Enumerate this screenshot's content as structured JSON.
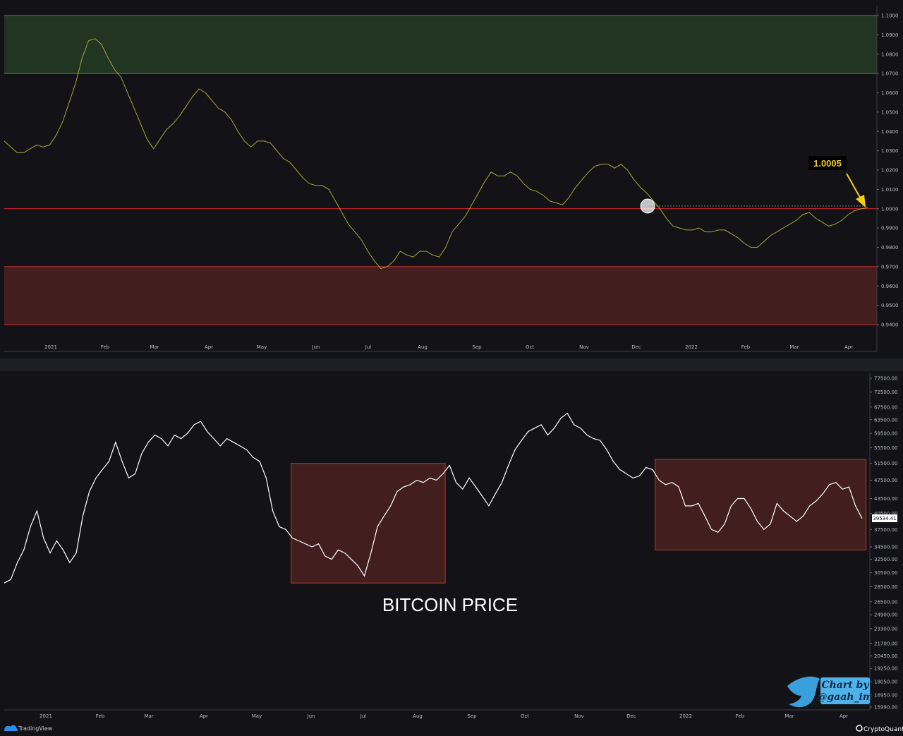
{
  "chart_data": [
    {
      "type": "line",
      "ylim": [
        0.94,
        1.1
      ],
      "yticks": [
        "1.1000",
        "1.0900",
        "1.0800",
        "1.0700",
        "1.0600",
        "1.0500",
        "1.0400",
        "1.0300",
        "1.0200",
        "1.0100",
        "1.0000",
        "0.9900",
        "0.9800",
        "0.9700",
        "0.9600",
        "0.9500",
        "0.9400"
      ],
      "xticks": [
        "2021",
        "Feb",
        "Mar",
        "Apr",
        "May",
        "Jun",
        "Jul",
        "Aug",
        "Sep",
        "Oct",
        "Nov",
        "Dec",
        "2022",
        "Feb",
        "Mar",
        "Apr"
      ],
      "bands": [
        {
          "from": 1.07,
          "to": 1.1,
          "color": "#213521"
        },
        {
          "from": 0.94,
          "to": 0.97,
          "color": "#421e1f"
        }
      ],
      "hlines": [
        {
          "y": 1.0,
          "color": "#e02a2a"
        }
      ],
      "line_color": "#a5a633",
      "callout": {
        "text": "1.0005",
        "y": 1.0005
      },
      "series": [
        {
          "values": [
            1.035,
            1.032,
            1.029,
            1.029,
            1.031,
            1.033,
            1.032,
            1.033,
            1.038,
            1.045,
            1.055,
            1.065,
            1.078,
            1.087,
            1.088,
            1.085,
            1.078,
            1.072,
            1.068,
            1.06,
            1.052,
            1.044,
            1.036,
            1.031,
            1.036,
            1.041,
            1.044,
            1.048,
            1.053,
            1.058,
            1.062,
            1.06,
            1.056,
            1.052,
            1.05,
            1.046,
            1.04,
            1.035,
            1.032,
            1.035,
            1.035,
            1.034,
            1.03,
            1.026,
            1.024,
            1.02,
            1.016,
            1.013,
            1.012,
            1.012,
            1.01,
            1.004,
            0.998,
            0.992,
            0.988,
            0.984,
            0.978,
            0.973,
            0.969,
            0.97,
            0.973,
            0.978,
            0.976,
            0.975,
            0.978,
            0.978,
            0.976,
            0.975,
            0.98,
            0.988,
            0.992,
            0.996,
            1.002,
            1.008,
            1.014,
            1.019,
            1.017,
            1.017,
            1.019,
            1.017,
            1.013,
            1.01,
            1.009,
            1.007,
            1.004,
            1.003,
            1.002,
            1.006,
            1.011,
            1.015,
            1.019,
            1.022,
            1.023,
            1.023,
            1.021,
            1.023,
            1.02,
            1.015,
            1.011,
            1.008,
            1.004,
            1.0,
            0.995,
            0.991,
            0.99,
            0.989,
            0.989,
            0.99,
            0.988,
            0.988,
            0.989,
            0.989,
            0.987,
            0.985,
            0.982,
            0.98,
            0.98,
            0.983,
            0.986,
            0.988,
            0.99,
            0.992,
            0.994,
            0.997,
            0.998,
            0.995,
            0.993,
            0.991,
            0.992,
            0.994,
            0.997,
            0.999,
            1.0,
            1.0005
          ]
        }
      ]
    },
    {
      "type": "line",
      "title": "BITCOIN PRICE",
      "ylim": [
        15990,
        77500
      ],
      "yticks": [
        "77500.00",
        "72500.00",
        "67500.00",
        "63500.00",
        "59500.00",
        "55500.00",
        "51500.00",
        "47500.00",
        "43500.00",
        "40500.00",
        "37500.00",
        "34500.00",
        "32500.00",
        "30500.00",
        "28500.00",
        "26500.00",
        "24900.00",
        "23300.00",
        "21700.00",
        "20450.00",
        "19250.00",
        "18050.00",
        "16950.00",
        "15990.00"
      ],
      "xticks": [
        "2021",
        "Feb",
        "Mar",
        "Apr",
        "May",
        "Jun",
        "Jul",
        "Aug",
        "Sep",
        "Oct",
        "Nov",
        "Dec",
        "2022",
        "Feb",
        "Mar",
        "Apr"
      ],
      "last_value": "39534.41",
      "line_color": "#ffffff",
      "highlights": [
        {
          "x_from": 0.358,
          "x_to": 0.55,
          "y_from": 29000,
          "y_to": 51500,
          "color": "#421e1f"
        },
        {
          "x_from": 0.812,
          "x_to": 1.075,
          "y_from": 34000,
          "y_to": 52500,
          "color": "#421e1f"
        }
      ],
      "series": [
        {
          "values": [
            29000,
            29500,
            32000,
            34000,
            38000,
            41000,
            36000,
            33500,
            35500,
            34000,
            32000,
            33500,
            40000,
            45000,
            48000,
            50000,
            52000,
            57000,
            52000,
            48000,
            49000,
            54000,
            57000,
            59000,
            58000,
            56000,
            59000,
            58000,
            59500,
            62000,
            63000,
            60000,
            58000,
            56000,
            58000,
            57000,
            56000,
            55000,
            53000,
            52000,
            48000,
            41000,
            38000,
            37500,
            36000,
            35500,
            35000,
            34500,
            35000,
            33000,
            32500,
            34000,
            33500,
            32500,
            31500,
            30000,
            33500,
            38000,
            40000,
            42000,
            45000,
            46000,
            46500,
            47500,
            47000,
            48000,
            47500,
            49000,
            51000,
            47000,
            45500,
            48000,
            46000,
            44000,
            42000,
            44500,
            47000,
            51000,
            55000,
            57500,
            60000,
            61000,
            62000,
            59000,
            61000,
            64000,
            65500,
            62000,
            61000,
            59000,
            58000,
            57500,
            55000,
            52000,
            50000,
            49000,
            48000,
            48500,
            50500,
            50000,
            47500,
            46500,
            47000,
            46000,
            42000,
            42000,
            42500,
            40000,
            37500,
            37000,
            38500,
            42000,
            43500,
            43500,
            41500,
            39000,
            37500,
            38500,
            42500,
            41000,
            40000,
            39000,
            40000,
            42000,
            43000,
            44500,
            46500,
            47000,
            45500,
            46000,
            42000,
            39534.41
          ]
        }
      ]
    }
  ],
  "branding": {
    "tradingview": "TradingView",
    "cryptoquant": "CryptoQuant",
    "credit_line1": "Chart by",
    "credit_line2": "@gaah_im"
  }
}
